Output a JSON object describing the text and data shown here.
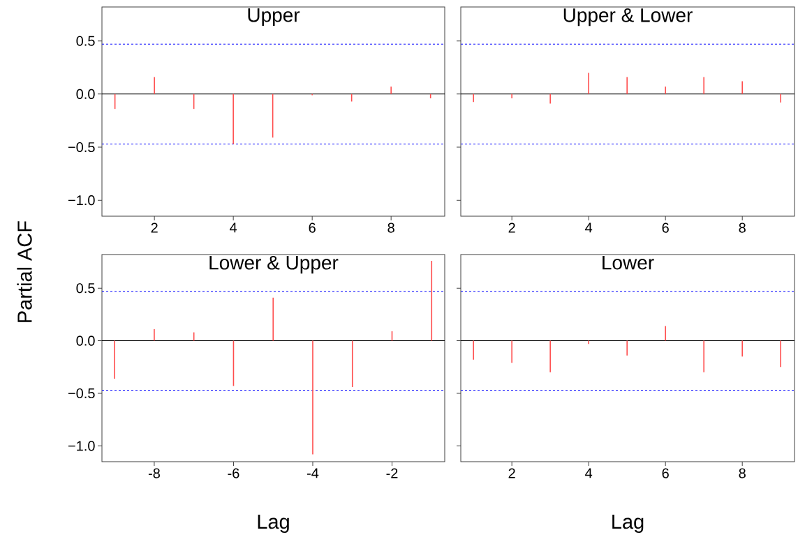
{
  "chart_data": [
    {
      "type": "bar",
      "title": "Upper",
      "ylabel": "Partial ACF",
      "x": [
        1,
        2,
        3,
        4,
        5,
        6,
        7,
        8,
        9
      ],
      "values": [
        -0.14,
        0.16,
        -0.14,
        -0.47,
        -0.41,
        -0.01,
        -0.07,
        0.07,
        -0.04
      ],
      "color": "#ff4d4d",
      "xlim": [
        0.67,
        9.36
      ],
      "ylim": [
        -1.15,
        0.82
      ],
      "xticks": [
        2,
        4,
        6,
        8
      ],
      "yticks": [
        {
          "value": -1.0,
          "label": "−1.0"
        },
        {
          "value": -0.5,
          "label": "−0.5"
        },
        {
          "value": 0.0,
          "label": "0.0"
        },
        {
          "value": 0.5,
          "label": "0.5"
        }
      ],
      "tick_labels": true,
      "ref_lines": [
        {
          "axis": "y",
          "value": 0.47,
          "color": "#0000ff",
          "line_style": "dashed"
        },
        {
          "axis": "y",
          "value": -0.47,
          "color": "#0000ff",
          "line_style": "dashed"
        },
        {
          "axis": "y",
          "value": 0,
          "color": "#000000",
          "line_style": "solid"
        }
      ]
    },
    {
      "type": "bar",
      "title": "Upper & Lower",
      "x": [
        1,
        2,
        3,
        4,
        5,
        6,
        7,
        8,
        9
      ],
      "values": [
        -0.075,
        -0.04,
        -0.09,
        0.2,
        0.16,
        0.07,
        0.16,
        0.12,
        -0.08
      ],
      "color": "#ff4d4d",
      "xlim": [
        0.67,
        9.36
      ],
      "ylim": [
        -1.15,
        0.82
      ],
      "xticks": [
        2,
        4,
        6,
        8
      ],
      "yticks": [
        {
          "value": -1.0,
          "label": null
        },
        {
          "value": -0.5,
          "label": null
        },
        {
          "value": 0.0,
          "label": null
        },
        {
          "value": 0.5,
          "label": null
        }
      ],
      "tick_labels": "x",
      "ref_lines": [
        {
          "axis": "y",
          "value": 0.47,
          "color": "#0000ff",
          "line_style": "dashed"
        },
        {
          "axis": "y",
          "value": -0.47,
          "color": "#0000ff",
          "line_style": "dashed"
        },
        {
          "axis": "y",
          "value": 0,
          "color": "#000000",
          "line_style": "solid"
        }
      ]
    },
    {
      "type": "bar",
      "title": "Lower & Upper",
      "xlabel": "Lag",
      "x": [
        -9,
        -8,
        -7,
        -6,
        -5,
        -4,
        -3,
        -2,
        -1
      ],
      "values": [
        -0.36,
        0.11,
        0.08,
        -0.43,
        0.41,
        -1.08,
        -0.44,
        0.09,
        0.76
      ],
      "color": "#ff4d4d",
      "xlim": [
        -9.32,
        -0.67
      ],
      "ylim": [
        -1.15,
        0.82
      ],
      "xticks": [
        -8,
        -6,
        -4,
        -2
      ],
      "yticks": [
        {
          "value": -1.0,
          "label": "−1.0"
        },
        {
          "value": -0.5,
          "label": "−0.5"
        },
        {
          "value": 0.0,
          "label": "0.0"
        },
        {
          "value": 0.5,
          "label": "0.5"
        }
      ],
      "tick_labels": true,
      "ref_lines": [
        {
          "axis": "y",
          "value": 0.47,
          "color": "#0000ff",
          "line_style": "dashed"
        },
        {
          "axis": "y",
          "value": -0.47,
          "color": "#0000ff",
          "line_style": "dashed"
        },
        {
          "axis": "y",
          "value": 0,
          "color": "#000000",
          "line_style": "solid"
        }
      ]
    },
    {
      "type": "bar",
      "title": "Lower",
      "xlabel": "Lag",
      "x": [
        1,
        2,
        3,
        4,
        5,
        6,
        7,
        8,
        9
      ],
      "values": [
        -0.18,
        -0.21,
        -0.3,
        -0.03,
        -0.14,
        0.14,
        -0.3,
        -0.15,
        -0.25
      ],
      "color": "#ff4d4d",
      "xlim": [
        0.67,
        9.36
      ],
      "ylim": [
        -1.15,
        0.82
      ],
      "xticks": [
        2,
        4,
        6,
        8
      ],
      "yticks": [
        {
          "value": -1.0,
          "label": null
        },
        {
          "value": -0.5,
          "label": null
        },
        {
          "value": 0.0,
          "label": null
        },
        {
          "value": 0.5,
          "label": null
        }
      ],
      "tick_labels": "x",
      "ref_lines": [
        {
          "axis": "y",
          "value": 0.47,
          "color": "#0000ff",
          "line_style": "dashed"
        },
        {
          "axis": "y",
          "value": -0.47,
          "color": "#0000ff",
          "line_style": "dashed"
        },
        {
          "axis": "y",
          "value": 0,
          "color": "#000000",
          "line_style": "solid"
        }
      ]
    }
  ]
}
